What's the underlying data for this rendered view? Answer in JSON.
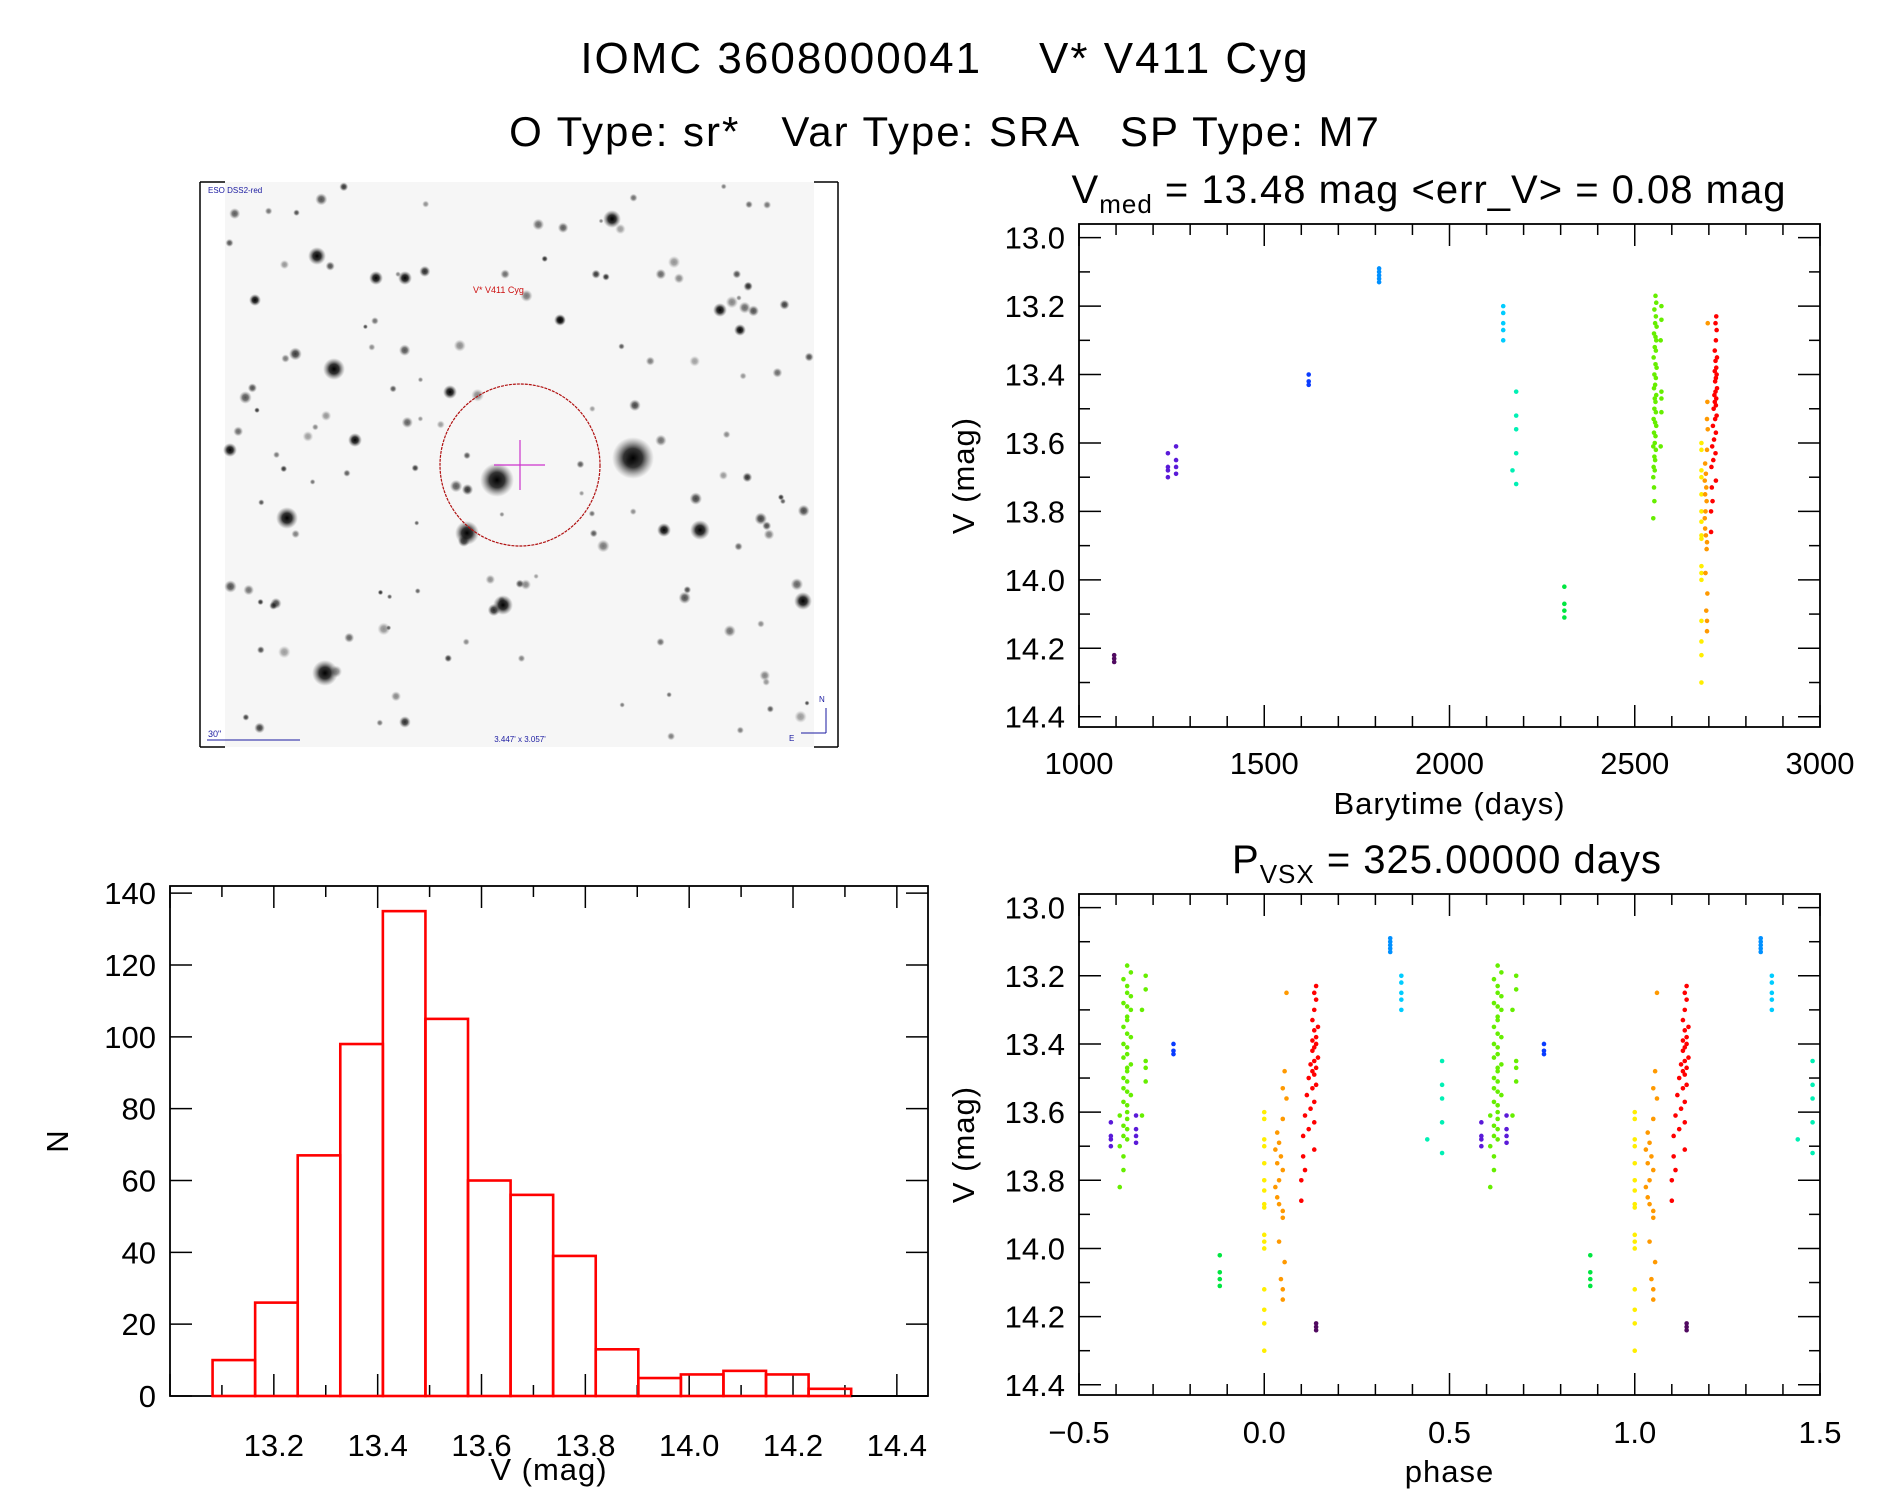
{
  "header": {
    "line1": "IOMC 3608000041    V* V411 Cyg",
    "line2": "O Type: sr*   Var Type: SRA   SP Type: M7"
  },
  "finder_image": {
    "survey_label": "ESO DSS2-red",
    "target_label": "V* V411 Cyg",
    "scale_label": "30\"",
    "fov_label": "3.447' x 3.057'",
    "north_label": "N",
    "east_label": "E",
    "colors": {
      "survey": "#1a1aa0",
      "target": "#cc1010",
      "circle": "#b01010",
      "cross": "#cc33cc"
    }
  },
  "chart_data": [
    {
      "id": "histogram",
      "type": "bar",
      "xlabel": "V (mag)",
      "ylabel": "N",
      "xlim": [
        13.0,
        14.46
      ],
      "ylim": [
        0,
        142
      ],
      "xticks": [
        "13.2",
        "13.4",
        "13.6",
        "13.8",
        "14.0",
        "14.2",
        "14.4"
      ],
      "yticks": [
        "0",
        "20",
        "40",
        "60",
        "80",
        "100",
        "120",
        "140"
      ],
      "bin_edges": [
        13.082,
        13.164,
        13.246,
        13.328,
        13.41,
        13.492,
        13.574,
        13.656,
        13.738,
        13.82,
        13.902,
        13.984,
        14.066,
        14.148,
        14.23,
        14.312
      ],
      "counts": [
        10,
        26,
        67,
        98,
        135,
        105,
        60,
        56,
        39,
        13,
        5,
        6,
        7,
        6,
        2
      ],
      "color": "#ff0000"
    },
    {
      "id": "lightcurve",
      "type": "scatter",
      "title": {
        "main": "V",
        "sub": "med",
        "rest": " = 13.48 mag <err_V> = 0.08 mag"
      },
      "xlabel": "Barytime (days)",
      "ylabel": "V (mag)",
      "xlim": [
        1000,
        3000
      ],
      "ylim": [
        12.96,
        14.43
      ],
      "y_inverted": true,
      "xticks": [
        "1000",
        "1500",
        "2000",
        "2500",
        "3000"
      ],
      "yticks": [
        "13.0",
        "13.2",
        "13.4",
        "13.6",
        "13.8",
        "14.0",
        "14.2",
        "14.4"
      ]
    },
    {
      "id": "phased",
      "type": "scatter",
      "title": {
        "main": "P",
        "sub": "VSX",
        "rest": " = 325.00000 days"
      },
      "xlabel": "phase",
      "ylabel": "V (mag)",
      "xlim": [
        -0.5,
        1.5
      ],
      "ylim": [
        12.96,
        14.43
      ],
      "y_inverted": true,
      "period_days": 325.0,
      "xticks": [
        "−0.5",
        "0.0",
        "0.5",
        "1.0",
        "1.5"
      ],
      "yticks": [
        "13.0",
        "13.2",
        "13.4",
        "13.6",
        "13.8",
        "14.0",
        "14.2",
        "14.4"
      ]
    }
  ],
  "observations": [
    {
      "color": "#500a60",
      "points": [
        [
          1095,
          14.22,
          0.14
        ],
        [
          1095,
          14.23,
          0.14
        ],
        [
          1095,
          14.24,
          0.14
        ]
      ]
    },
    {
      "color": "#5a1ad8",
      "points": [
        [
          1240,
          13.63,
          -0.414
        ],
        [
          1240,
          13.67,
          -0.414
        ],
        [
          1240,
          13.68,
          -0.414
        ],
        [
          1240,
          13.7,
          -0.414
        ],
        [
          1262,
          13.61,
          -0.346
        ],
        [
          1262,
          13.65,
          -0.346
        ],
        [
          1262,
          13.67,
          -0.346
        ],
        [
          1262,
          13.69,
          -0.346
        ]
      ]
    },
    {
      "color": "#0a3cff",
      "points": [
        [
          1620,
          13.4,
          -0.245
        ],
        [
          1620,
          13.42,
          -0.245
        ],
        [
          1620,
          13.43,
          -0.245
        ]
      ]
    },
    {
      "color": "#0090ff",
      "points": [
        [
          1810,
          13.09,
          0.34
        ],
        [
          1810,
          13.1,
          0.34
        ],
        [
          1810,
          13.11,
          0.34
        ],
        [
          1810,
          13.12,
          0.34
        ],
        [
          1810,
          13.13,
          0.34
        ]
      ]
    },
    {
      "color": "#00ccff",
      "points": [
        [
          2145,
          13.2,
          0.37
        ],
        [
          2145,
          13.22,
          0.37
        ],
        [
          2145,
          13.25,
          0.37
        ],
        [
          2145,
          13.27,
          0.37
        ],
        [
          2145,
          13.3,
          0.37
        ]
      ]
    },
    {
      "color": "#00f0b4",
      "points": [
        [
          2170,
          13.68,
          0.44
        ],
        [
          2180,
          13.45,
          0.48
        ],
        [
          2180,
          13.52,
          0.48
        ],
        [
          2180,
          13.56,
          0.48
        ],
        [
          2180,
          13.63,
          0.48
        ],
        [
          2180,
          13.72,
          0.48
        ]
      ]
    },
    {
      "color": "#00e640",
      "points": [
        [
          2310,
          14.02,
          -0.12
        ],
        [
          2310,
          14.07,
          -0.12
        ],
        [
          2310,
          14.09,
          -0.12
        ],
        [
          2310,
          14.11,
          -0.12
        ]
      ]
    },
    {
      "color": "#66ee00",
      "points": [
        [
          2556,
          13.17,
          -0.37
        ],
        [
          2558,
          13.19,
          -0.36
        ],
        [
          2553,
          13.21,
          -0.38
        ],
        [
          2557,
          13.23,
          -0.37
        ],
        [
          2555,
          13.25,
          -0.37
        ],
        [
          2559,
          13.26,
          -0.36
        ],
        [
          2552,
          13.28,
          -0.38
        ],
        [
          2556,
          13.29,
          -0.37
        ],
        [
          2558,
          13.3,
          -0.36
        ],
        [
          2554,
          13.32,
          -0.37
        ],
        [
          2557,
          13.33,
          -0.37
        ],
        [
          2551,
          13.35,
          -0.38
        ],
        [
          2556,
          13.37,
          -0.37
        ],
        [
          2559,
          13.38,
          -0.36
        ],
        [
          2553,
          13.4,
          -0.38
        ],
        [
          2557,
          13.41,
          -0.37
        ],
        [
          2555,
          13.43,
          -0.37
        ],
        [
          2552,
          13.44,
          -0.38
        ],
        [
          2558,
          13.46,
          -0.36
        ],
        [
          2554,
          13.47,
          -0.37
        ],
        [
          2556,
          13.48,
          -0.37
        ],
        [
          2553,
          13.5,
          -0.38
        ],
        [
          2557,
          13.51,
          -0.37
        ],
        [
          2551,
          13.53,
          -0.38
        ],
        [
          2555,
          13.54,
          -0.37
        ],
        [
          2558,
          13.55,
          -0.36
        ],
        [
          2552,
          13.57,
          -0.38
        ],
        [
          2556,
          13.58,
          -0.37
        ],
        [
          2554,
          13.6,
          -0.37
        ],
        [
          2550,
          13.61,
          -0.39
        ],
        [
          2557,
          13.62,
          -0.37
        ],
        [
          2553,
          13.64,
          -0.38
        ],
        [
          2555,
          13.65,
          -0.37
        ],
        [
          2551,
          13.67,
          -0.38
        ],
        [
          2554,
          13.68,
          -0.37
        ],
        [
          2550,
          13.7,
          -0.39
        ],
        [
          2552,
          13.73,
          -0.38
        ],
        [
          2553,
          13.77,
          -0.38
        ],
        [
          2550,
          13.82,
          -0.39
        ],
        [
          2572,
          13.2,
          -0.32
        ],
        [
          2572,
          13.24,
          -0.32
        ],
        [
          2570,
          13.3,
          -0.33
        ],
        [
          2572,
          13.45,
          -0.32
        ],
        [
          2572,
          13.47,
          -0.32
        ],
        [
          2572,
          13.51,
          -0.32
        ],
        [
          2570,
          13.61,
          -0.33
        ]
      ]
    },
    {
      "color": "#ffee00",
      "points": [
        [
          2680,
          13.6,
          0.0
        ],
        [
          2680,
          13.62,
          0.0
        ],
        [
          2680,
          13.68,
          0.0
        ],
        [
          2680,
          13.7,
          0.0
        ],
        [
          2680,
          13.75,
          0.0
        ],
        [
          2680,
          13.8,
          0.0
        ],
        [
          2680,
          13.83,
          0.0
        ],
        [
          2680,
          13.87,
          0.0
        ],
        [
          2680,
          13.88,
          0.0
        ],
        [
          2680,
          13.96,
          0.0
        ],
        [
          2680,
          13.98,
          0.0
        ],
        [
          2680,
          14.0,
          0.0
        ],
        [
          2680,
          14.12,
          0.0
        ],
        [
          2680,
          14.18,
          0.0
        ],
        [
          2680,
          14.22,
          0.0
        ],
        [
          2680,
          14.3,
          0.0
        ]
      ]
    },
    {
      "color": "#ff9900",
      "points": [
        [
          2697,
          13.25,
          0.06
        ],
        [
          2696,
          13.48,
          0.055
        ],
        [
          2695,
          13.53,
          0.05
        ],
        [
          2697,
          13.56,
          0.06
        ],
        [
          2695,
          13.62,
          0.05
        ],
        [
          2690,
          13.66,
          0.035
        ],
        [
          2692,
          13.69,
          0.04
        ],
        [
          2689,
          13.71,
          0.03
        ],
        [
          2693,
          13.73,
          0.045
        ],
        [
          2690,
          13.75,
          0.035
        ],
        [
          2694,
          13.77,
          0.05
        ],
        [
          2691,
          13.8,
          0.04
        ],
        [
          2689,
          13.82,
          0.03
        ],
        [
          2690,
          13.85,
          0.035
        ],
        [
          2692,
          13.87,
          0.04
        ],
        [
          2695,
          13.89,
          0.05
        ],
        [
          2694,
          13.91,
          0.05
        ],
        [
          2691,
          13.98,
          0.04
        ],
        [
          2696,
          14.04,
          0.055
        ],
        [
          2693,
          14.09,
          0.045
        ],
        [
          2695,
          14.12,
          0.05
        ],
        [
          2695,
          14.15,
          0.05
        ]
      ]
    },
    {
      "color": "#ff0000",
      "points": [
        [
          2720,
          13.23,
          0.14
        ],
        [
          2718,
          13.25,
          0.135
        ],
        [
          2721,
          13.27,
          0.14
        ],
        [
          2719,
          13.3,
          0.135
        ],
        [
          2716,
          13.33,
          0.13
        ],
        [
          2722,
          13.35,
          0.145
        ],
        [
          2718,
          13.36,
          0.135
        ],
        [
          2720,
          13.38,
          0.14
        ],
        [
          2716,
          13.39,
          0.13
        ],
        [
          2721,
          13.4,
          0.14
        ],
        [
          2719,
          13.41,
          0.135
        ],
        [
          2717,
          13.42,
          0.13
        ],
        [
          2722,
          13.44,
          0.145
        ],
        [
          2718,
          13.45,
          0.135
        ],
        [
          2715,
          13.46,
          0.125
        ],
        [
          2720,
          13.47,
          0.14
        ],
        [
          2716,
          13.48,
          0.13
        ],
        [
          2719,
          13.49,
          0.135
        ],
        [
          2713,
          13.5,
          0.12
        ],
        [
          2721,
          13.52,
          0.14
        ],
        [
          2717,
          13.53,
          0.13
        ],
        [
          2711,
          13.55,
          0.115
        ],
        [
          2719,
          13.57,
          0.135
        ],
        [
          2714,
          13.59,
          0.125
        ],
        [
          2709,
          13.61,
          0.11
        ],
        [
          2718,
          13.63,
          0.135
        ],
        [
          2712,
          13.65,
          0.12
        ],
        [
          2707,
          13.67,
          0.105
        ],
        [
          2719,
          13.71,
          0.135
        ],
        [
          2708,
          13.73,
          0.105
        ],
        [
          2710,
          13.77,
          0.11
        ],
        [
          2706,
          13.8,
          0.1
        ],
        [
          2706,
          13.86,
          0.1
        ]
      ]
    }
  ]
}
